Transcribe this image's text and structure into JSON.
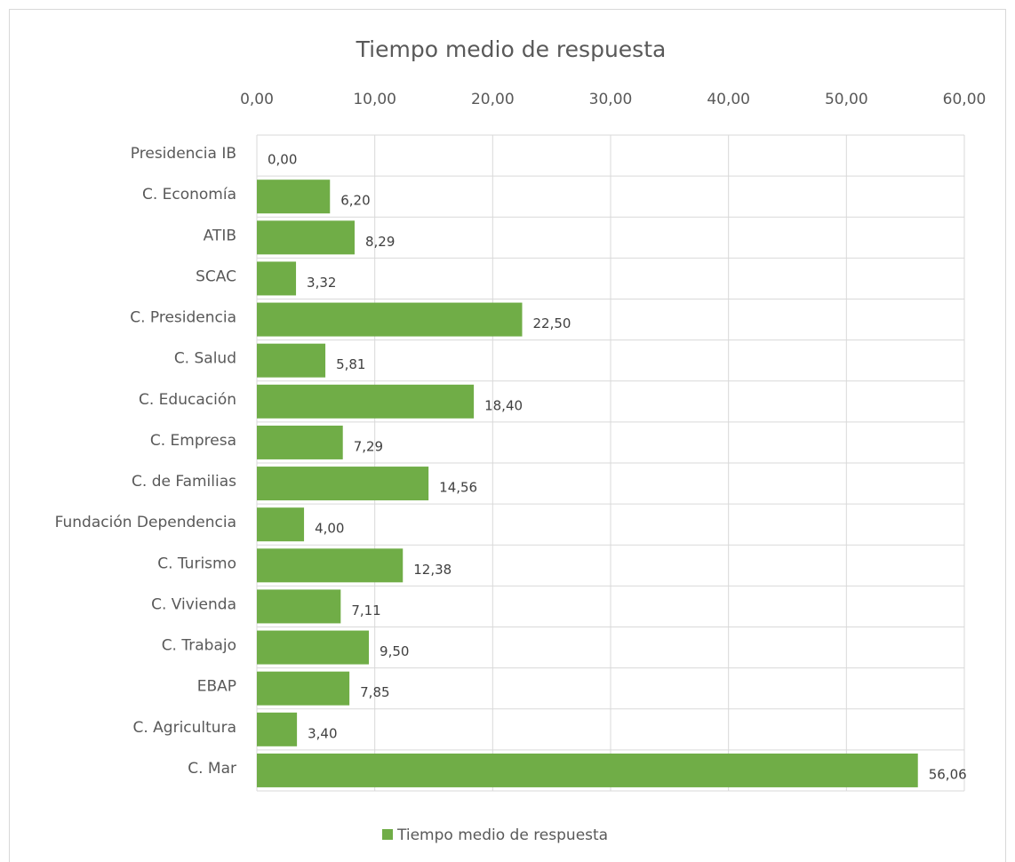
{
  "chart_data": {
    "type": "bar",
    "orientation": "horizontal",
    "title": "Tiempo medio de respuesta",
    "categories": [
      "Presidencia IB",
      "C. Economía",
      "ATIB",
      "SCAC",
      "C. Presidencia",
      "C. Salud",
      "C. Educación",
      "C. Empresa",
      "C. de Familias",
      "Fundación Dependencia",
      "C. Turismo",
      "C. Vivienda",
      "C. Trabajo",
      "EBAP",
      "C. Agricultura",
      "C. Mar"
    ],
    "series": [
      {
        "name": "Tiempo medio de respuesta",
        "color": "#70ad47",
        "values": [
          0,
          6.2,
          8.29,
          3.32,
          22.5,
          5.81,
          18.4,
          7.29,
          14.56,
          4,
          12.38,
          7.11,
          9.5,
          7.85,
          3.4,
          56.06
        ],
        "value_labels": [
          "0,00",
          "6,20",
          "8,29",
          "3,32",
          "22,50",
          "5,81",
          "18,40",
          "7,29",
          "14,56",
          "4,00",
          "12,38",
          "7,11",
          "9,50",
          "7,85",
          "3,40",
          "56,06"
        ]
      }
    ],
    "xlim": [
      0,
      60
    ],
    "xticks": [
      {
        "value": 0,
        "label": "0,00"
      },
      {
        "value": 10,
        "label": "10,00"
      },
      {
        "value": 20,
        "label": "20,00"
      },
      {
        "value": 30,
        "label": "30,00"
      },
      {
        "value": 40,
        "label": "40,00"
      },
      {
        "value": 50,
        "label": "50,00"
      },
      {
        "value": 60,
        "label": "60,00"
      }
    ],
    "grid": true,
    "legend": "bottom"
  }
}
